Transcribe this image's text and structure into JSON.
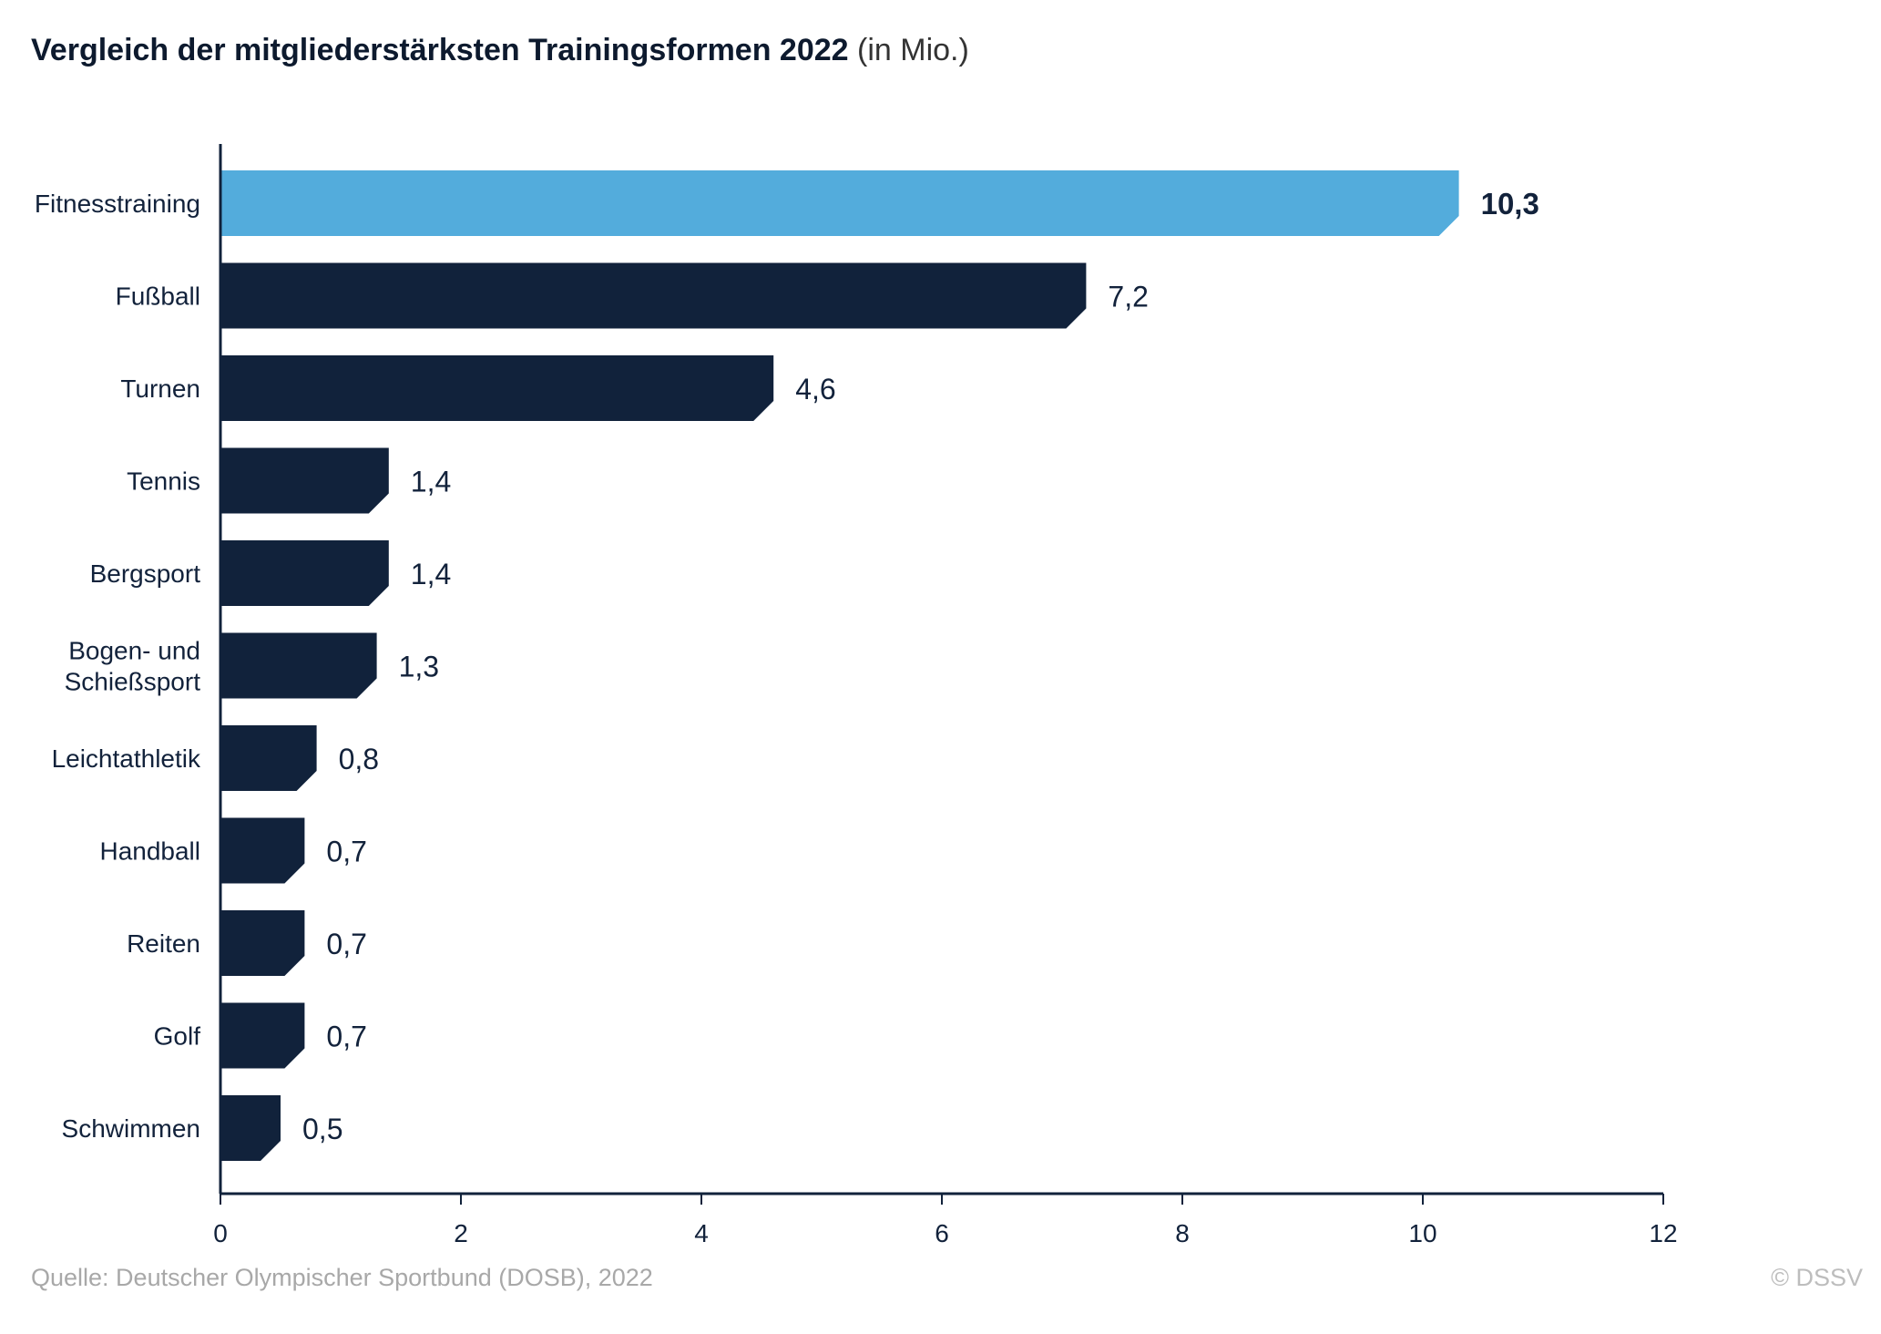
{
  "title": "Vergleich der mitgliederstärksten Trainingsformen 2022",
  "title_unit": "(in Mio.)",
  "source": "Quelle: Deutscher Olympischer Sportbund (DOSB), 2022",
  "copyright": "© DSSV",
  "colors": {
    "highlight": "#53acdc",
    "bar": "#11223b",
    "axis": "#11223b",
    "text": "#12223b"
  },
  "chart_data": {
    "type": "bar",
    "orientation": "horizontal",
    "categories": [
      "Fitnesstraining",
      "Fußball",
      "Turnen",
      "Tennis",
      "Bergsport",
      "Bogen- und Schießsport",
      "Leichtathletik",
      "Handball",
      "Reiten",
      "Golf",
      "Schwimmen"
    ],
    "category_lines": [
      [
        "Fitnesstraining"
      ],
      [
        "Fußball"
      ],
      [
        "Turnen"
      ],
      [
        "Tennis"
      ],
      [
        "Bergsport"
      ],
      [
        "Bogen- und",
        "Schießsport"
      ],
      [
        "Leichtathletik"
      ],
      [
        "Handball"
      ],
      [
        "Reiten"
      ],
      [
        "Golf"
      ],
      [
        "Schwimmen"
      ]
    ],
    "values": [
      10.3,
      7.2,
      4.6,
      1.4,
      1.4,
      1.3,
      0.8,
      0.7,
      0.7,
      0.7,
      0.5
    ],
    "value_labels": [
      "10,3",
      "7,2",
      "4,6",
      "1,4",
      "1,4",
      "1,3",
      "0,8",
      "0,7",
      "0,7",
      "0,7",
      "0,5"
    ],
    "highlight_index": 0,
    "xlim": [
      0,
      12
    ],
    "xticks": [
      0,
      2,
      4,
      6,
      8,
      10,
      12
    ],
    "grid": false,
    "legend": "none"
  }
}
